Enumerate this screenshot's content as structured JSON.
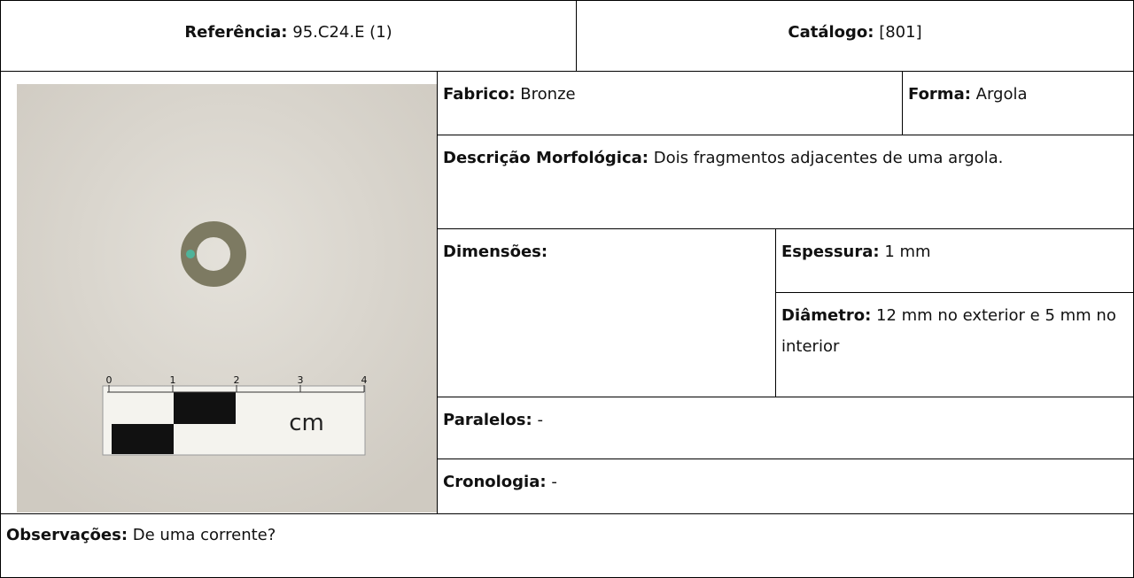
{
  "header": {
    "reference": {
      "label": "Referência:",
      "value": "95.C24.E (1)"
    },
    "catalog": {
      "label": "Catálogo:",
      "value": "[801]"
    }
  },
  "photo": {
    "scale_labels": [
      "0",
      "1",
      "2",
      "3",
      "4"
    ],
    "unit": "cm"
  },
  "fields": {
    "fabric": {
      "label": "Fabrico:",
      "value": "Bronze"
    },
    "form": {
      "label": "Forma:",
      "value": "Argola"
    },
    "description": {
      "label": "Descrição Morfológica:",
      "value": "Dois fragmentos adjacentes de uma argola."
    },
    "dimensions": {
      "label": "Dimensões:"
    },
    "thickness": {
      "label": "Espessura:",
      "value": "1 mm"
    },
    "diameter": {
      "label": "Diâmetro:",
      "value": "12 mm no exterior e 5 mm no interior"
    },
    "parallels": {
      "label": "Paralelos:",
      "value": "-"
    },
    "chronology": {
      "label": "Cronologia:",
      "value": "-"
    },
    "observations": {
      "label": "Observações:",
      "value": "De uma corrente?"
    }
  }
}
